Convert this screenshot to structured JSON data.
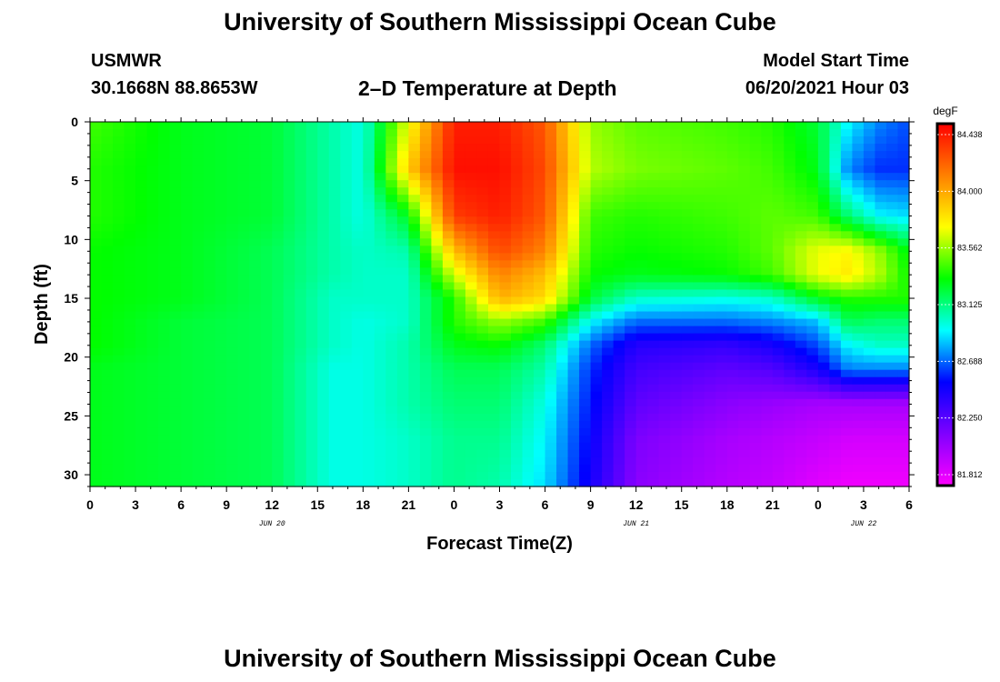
{
  "page": {
    "title": "University of Southern Mississippi Ocean Cube",
    "footer_title": "University of Southern Mississippi Ocean Cube",
    "station": "USMWR",
    "coordinates": "30.1668N  88.8653W",
    "plot_title": "2–D Temperature at Depth",
    "model_start_label": "Model Start Time",
    "model_start_value": "06/20/2021 Hour 03"
  },
  "chart_data": {
    "type": "heatmap",
    "title": "2–D Temperature at Depth",
    "xlabel": "Forecast Time(Z)",
    "ylabel": "Depth (ft)",
    "x_tick_labels": [
      "0",
      "3",
      "6",
      "9",
      "12",
      "15",
      "18",
      "21",
      "0",
      "3",
      "6",
      "9",
      "12",
      "15",
      "18",
      "21",
      "0",
      "3",
      "6"
    ],
    "x_day_labels": [
      {
        "label": "JUN 20",
        "at_tick_index": 4
      },
      {
        "label": "JUN 21",
        "at_tick_index": 12
      },
      {
        "label": "JUN 22",
        "at_tick_index": 17
      }
    ],
    "xlim": [
      0,
      54
    ],
    "x_unit": "hours since 2021-06-20 00Z",
    "y_ticks": [
      0,
      5,
      10,
      15,
      20,
      25,
      30
    ],
    "ylim": [
      0,
      31
    ],
    "y_inverted": true,
    "colorbar": {
      "unit": "degF",
      "ticks": [
        "84.438",
        "84.000",
        "83.562",
        "83.125",
        "82.688",
        "82.250",
        "81.812"
      ],
      "min": 81.6,
      "max": 84.65,
      "colors_low_to_high": [
        "#ff00ff",
        "#8000ff",
        "#0000ff",
        "#00ffff",
        "#00ff00",
        "#ffff00",
        "#ff8000",
        "#ff0000"
      ]
    },
    "depths_ft": [
      0,
      4,
      8,
      11,
      13,
      15,
      17,
      19,
      21,
      24,
      27,
      31
    ],
    "hours": [
      0,
      6,
      12,
      16,
      18,
      21,
      24,
      27,
      30,
      33,
      36,
      42,
      45,
      48,
      50,
      52,
      54
    ],
    "temperature_degF": [
      [
        83.45,
        83.3,
        83.25,
        83.05,
        82.95,
        83.75,
        84.55,
        84.55,
        84.35,
        83.6,
        83.5,
        83.45,
        83.4,
        83.25,
        82.9,
        82.7,
        82.6
      ],
      [
        83.4,
        83.3,
        83.25,
        83.05,
        82.95,
        83.95,
        84.6,
        84.6,
        84.4,
        83.65,
        83.55,
        83.5,
        83.45,
        83.3,
        82.7,
        82.55,
        82.55
      ],
      [
        83.4,
        83.3,
        83.25,
        83.05,
        82.95,
        83.3,
        84.45,
        84.55,
        84.35,
        83.45,
        83.4,
        83.45,
        83.5,
        83.45,
        83.15,
        82.9,
        82.85
      ],
      [
        83.35,
        83.3,
        83.2,
        83.05,
        83.0,
        83.05,
        84.0,
        84.4,
        84.2,
        83.4,
        83.35,
        83.4,
        83.5,
        83.75,
        83.8,
        83.6,
        83.3
      ],
      [
        83.35,
        83.3,
        83.2,
        83.05,
        83.0,
        83.0,
        83.7,
        84.2,
        84.0,
        83.35,
        83.3,
        83.35,
        83.45,
        83.75,
        83.85,
        83.65,
        83.35
      ],
      [
        83.35,
        83.3,
        83.2,
        83.0,
        83.0,
        83.0,
        83.4,
        84.05,
        83.9,
        83.25,
        83.0,
        82.95,
        83.0,
        83.3,
        83.4,
        83.4,
        83.4
      ],
      [
        83.35,
        83.25,
        83.2,
        83.0,
        82.95,
        83.0,
        83.4,
        83.6,
        83.45,
        82.9,
        82.65,
        82.65,
        82.7,
        82.8,
        83.2,
        83.15,
        83.15
      ],
      [
        83.35,
        83.25,
        83.2,
        83.0,
        82.95,
        83.05,
        83.3,
        83.35,
        83.15,
        82.65,
        82.35,
        82.3,
        82.4,
        82.6,
        82.9,
        83.0,
        83.0
      ],
      [
        83.3,
        83.25,
        83.2,
        82.95,
        82.95,
        83.05,
        83.2,
        83.2,
        83.05,
        82.55,
        82.25,
        82.15,
        82.2,
        82.4,
        82.7,
        82.7,
        82.7
      ],
      [
        83.3,
        83.25,
        83.2,
        82.95,
        82.95,
        83.05,
        83.15,
        83.15,
        82.95,
        82.5,
        82.15,
        82.0,
        81.95,
        81.9,
        81.9,
        81.9,
        81.9
      ],
      [
        83.3,
        83.25,
        83.2,
        82.95,
        82.95,
        83.0,
        83.1,
        83.1,
        82.9,
        82.45,
        82.05,
        81.9,
        81.85,
        81.8,
        81.75,
        81.75,
        81.75
      ],
      [
        83.3,
        83.25,
        83.2,
        82.95,
        82.95,
        83.0,
        83.1,
        83.05,
        82.85,
        82.4,
        82.0,
        81.85,
        81.8,
        81.7,
        81.65,
        81.65,
        81.65
      ]
    ]
  }
}
